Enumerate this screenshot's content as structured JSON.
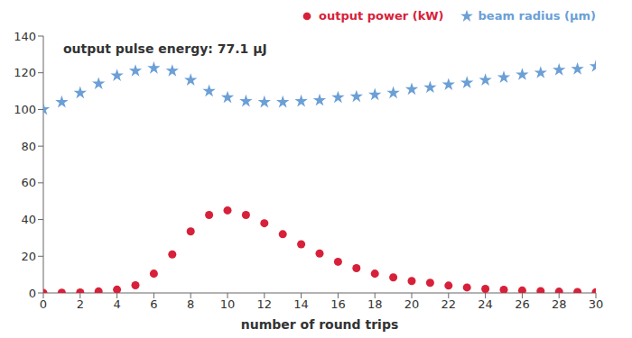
{
  "chart_data": {
    "type": "scatter",
    "annotation": "output pulse energy: 77.1 μJ",
    "x_label": "number of round trips",
    "x": [
      0,
      1,
      2,
      3,
      4,
      5,
      6,
      7,
      8,
      9,
      10,
      11,
      12,
      13,
      14,
      15,
      16,
      17,
      18,
      19,
      20,
      21,
      22,
      23,
      24,
      25,
      26,
      27,
      28,
      29,
      30
    ],
    "series": [
      {
        "name": "output power (kW)",
        "color": "#d7213a",
        "marker": "circle",
        "values": [
          0,
          0.1,
          0.3,
          0.8,
          1.8,
          4.2,
          10.5,
          21,
          33.5,
          42.5,
          45,
          42.5,
          38,
          32,
          26.5,
          21.5,
          17,
          13.5,
          10.5,
          8.5,
          6.5,
          5.5,
          4,
          3,
          2.2,
          1.7,
          1.3,
          1,
          0.7,
          0.5,
          0.4
        ]
      },
      {
        "name": "beam radius (μm)",
        "color": "#6b9fd6",
        "marker": "star",
        "values": [
          100,
          104,
          109,
          114,
          118.5,
          121,
          122.5,
          121,
          116,
          110,
          106.5,
          104.5,
          104,
          104,
          104.5,
          105,
          106.5,
          107,
          108,
          109,
          111,
          112,
          113.5,
          114.5,
          116,
          117.5,
          119,
          120,
          121.5,
          122,
          123.5
        ]
      }
    ],
    "xlim": [
      0,
      30
    ],
    "xticks": [
      0,
      2,
      4,
      6,
      8,
      10,
      12,
      14,
      16,
      18,
      20,
      22,
      24,
      26,
      28,
      30
    ],
    "ylim": [
      0,
      140
    ],
    "yticks": [
      0,
      20,
      40,
      60,
      80,
      100,
      120,
      140
    ],
    "grid": false,
    "legend": "top right"
  }
}
